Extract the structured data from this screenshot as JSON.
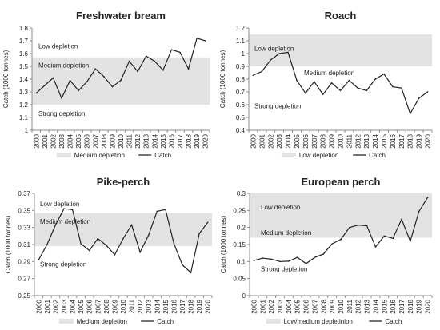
{
  "chart_data": [
    {
      "type": "line",
      "title": "Freshwater bream",
      "ylabel": "Catch (1000 tonnes)",
      "ylim": [
        1,
        1.8
      ],
      "ystep": 0.1,
      "yticks": [
        "1",
        "1.1",
        "1.2",
        "1.3",
        "1.4",
        "1.5",
        "1.6",
        "1.7",
        "1.8"
      ],
      "x": [
        "2000",
        "2001",
        "2002",
        "2003",
        "2004",
        "2005",
        "2006",
        "2007",
        "2008",
        "2009",
        "2010",
        "2011",
        "2012",
        "2013",
        "2014",
        "2015",
        "2016",
        "2017",
        "2018",
        "2019",
        "2020"
      ],
      "series": [
        {
          "name": "Catch",
          "values": [
            1.29,
            1.35,
            1.41,
            1.25,
            1.39,
            1.31,
            1.38,
            1.48,
            1.42,
            1.34,
            1.39,
            1.54,
            1.46,
            1.58,
            1.54,
            1.47,
            1.63,
            1.61,
            1.48,
            1.72,
            1.7
          ]
        }
      ],
      "band": {
        "name": "Medium depletion",
        "y0": 1.2,
        "y1": 1.57
      },
      "annotations": [
        {
          "text": "Low depletion",
          "y": 1.66
        },
        {
          "text": "Medium depletion",
          "y": 1.51
        },
        {
          "text": "Strong depletion",
          "y": 1.13
        }
      ],
      "legend": {
        "position": "bottom",
        "items": [
          "Medium depletion",
          "Catch"
        ]
      },
      "grid": false
    },
    {
      "type": "line",
      "title": "Roach",
      "ylabel": "Catch (1000 tonnes)",
      "ylim": [
        0.4,
        1.2
      ],
      "ystep": 0.1,
      "yticks": [
        "0.4",
        "0.5",
        "0.6",
        "0.7",
        "0.8",
        "0.9",
        "1",
        "1.1",
        "1.2"
      ],
      "x": [
        "2000",
        "2001",
        "2002",
        "2003",
        "2004",
        "2005",
        "2006",
        "2007",
        "2008",
        "2009",
        "2010",
        "2011",
        "2012",
        "2013",
        "2014",
        "2015",
        "2016",
        "2017",
        "2018",
        "2019",
        "2020"
      ],
      "series": [
        {
          "name": "Catch",
          "values": [
            0.83,
            0.86,
            0.95,
            1.0,
            1.01,
            0.79,
            0.69,
            0.78,
            0.68,
            0.77,
            0.71,
            0.79,
            0.73,
            0.71,
            0.8,
            0.84,
            0.74,
            0.73,
            0.53,
            0.65,
            0.7
          ]
        }
      ],
      "band": {
        "name": "Low depletion",
        "y0": 0.9,
        "y1": 1.15
      },
      "annotations": [
        {
          "text": "Low depletion",
          "y": 1.04
        },
        {
          "text": "Medium depletion",
          "y": 0.85
        },
        {
          "text": "Strong depletion",
          "y": 0.59
        }
      ],
      "legend": {
        "position": "bottom",
        "items": [
          "Low depletion",
          "Catch"
        ]
      },
      "grid": false
    },
    {
      "type": "line",
      "title": "Pike-perch",
      "ylabel": "Catch (1000 tonnes)",
      "ylim": [
        0.25,
        0.37
      ],
      "ystep": 0.02,
      "yticks": [
        "0.25",
        "0.27",
        "0.29",
        "0.31",
        "0.33",
        "0.35",
        "0.37"
      ],
      "x": [
        "2000",
        "2001",
        "2002",
        "2003",
        "2004",
        "2005",
        "2006",
        "2007",
        "2008",
        "2009",
        "2010",
        "2011",
        "2012",
        "2013",
        "2014",
        "2015",
        "2016",
        "2017",
        "2018",
        "2019",
        "2020"
      ],
      "series": [
        {
          "name": "Catch",
          "values": [
            0.292,
            0.31,
            0.333,
            0.352,
            0.351,
            0.311,
            0.303,
            0.317,
            0.309,
            0.298,
            0.317,
            0.333,
            0.301,
            0.321,
            0.349,
            0.351,
            0.311,
            0.286,
            0.277,
            0.323,
            0.336
          ]
        }
      ],
      "band": {
        "name": "Medium depletion",
        "y0": 0.308,
        "y1": 0.347
      },
      "annotations": [
        {
          "text": "Low depletion",
          "y": 0.358
        },
        {
          "text": "Medium depletion",
          "y": 0.337
        },
        {
          "text": "Strong depletion",
          "y": 0.287
        }
      ],
      "legend": {
        "position": "bottom",
        "items": [
          "Medium depletion",
          "Catch"
        ]
      },
      "grid": false
    },
    {
      "type": "line",
      "title": "European perch",
      "ylabel": "Catch (1000 tonnes)",
      "ylim": [
        0,
        0.3
      ],
      "ystep": 0.05,
      "yticks": [
        "0",
        "0.05",
        "0.1",
        "0.15",
        "0.2",
        "0.25",
        "0.3"
      ],
      "x": [
        "2000",
        "2001",
        "2002",
        "2003",
        "2004",
        "2005",
        "2006",
        "2007",
        "2008",
        "2009",
        "2010",
        "2011",
        "2012",
        "2013",
        "2014",
        "2015",
        "2016",
        "2017",
        "2018",
        "2019",
        "2020"
      ],
      "series": [
        {
          "name": "Catch",
          "values": [
            0.103,
            0.11,
            0.107,
            0.1,
            0.101,
            0.112,
            0.094,
            0.112,
            0.122,
            0.152,
            0.165,
            0.2,
            0.207,
            0.205,
            0.143,
            0.175,
            0.168,
            0.224,
            0.16,
            0.247,
            0.288
          ]
        }
      ],
      "band": {
        "name": "Low/medium depletinion",
        "y0": 0.17,
        "y1": 0.31
      },
      "annotations": [
        {
          "text": "Low depletion",
          "y": 0.26
        },
        {
          "text": "Medium depletion",
          "y": 0.185
        },
        {
          "text": "Strong depletion",
          "y": 0.078
        }
      ],
      "legend": {
        "position": "bottom",
        "items": [
          "Low/medium depletinion",
          "Catch"
        ]
      },
      "grid": false
    }
  ],
  "colors": {
    "band": "#e3e3e3",
    "line": "#222222",
    "axis": "#8c8c8c",
    "text": "#222222"
  }
}
